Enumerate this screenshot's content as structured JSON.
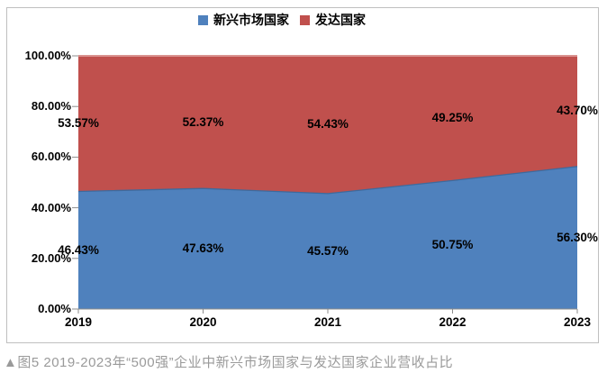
{
  "legend": {
    "items": [
      {
        "label": "新兴市场国家",
        "color": "#4F81BD"
      },
      {
        "label": "发达国家",
        "color": "#C0504D"
      }
    ]
  },
  "caption": "▲图5 2019-2023年“500强”企业中新兴市场国家与发达国家企业营收占比",
  "chart_data": {
    "type": "area",
    "subtype": "stacked-100-percent",
    "title": "",
    "xlabel": "",
    "ylabel": "",
    "categories": [
      "2019",
      "2020",
      "2021",
      "2022",
      "2023"
    ],
    "series": [
      {
        "name": "新兴市场国家",
        "color": "#4F81BD",
        "edge_color": "#3D6A9D",
        "values": [
          46.43,
          47.63,
          45.57,
          50.75,
          56.3
        ]
      },
      {
        "name": "发达国家",
        "color": "#C0504D",
        "edge_color": "#D9928F",
        "values": [
          53.57,
          52.37,
          54.43,
          49.25,
          43.7
        ]
      }
    ],
    "data_labels": {
      "series_0": [
        "46.43%",
        "47.63%",
        "45.57%",
        "50.75%",
        "56.30%"
      ],
      "series_1": [
        "53.57%",
        "52.37%",
        "54.43%",
        "49.25%",
        "43.70%"
      ]
    },
    "ylim": [
      0,
      100
    ],
    "y_ticks": [
      "100.00%",
      "80.00%",
      "60.00%",
      "40.00%",
      "20.00%",
      "0.00%"
    ],
    "grid": false,
    "legend_position": "top",
    "axis_color": "#8c8c8c"
  }
}
